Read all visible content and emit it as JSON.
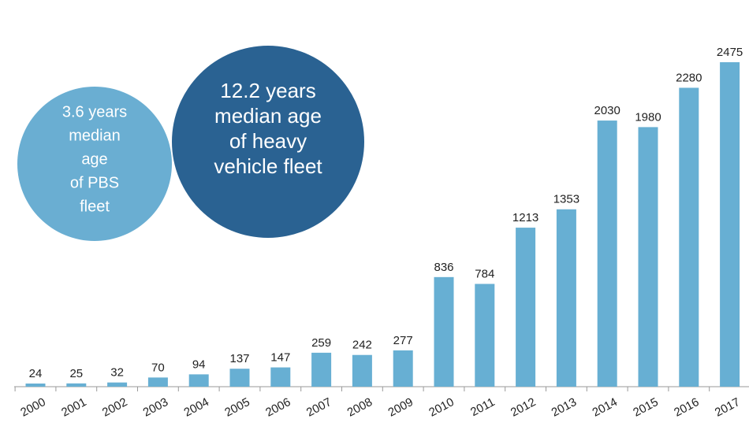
{
  "chart_data": {
    "type": "bar",
    "categories": [
      "2000",
      "2001",
      "2002",
      "2003",
      "2004",
      "2005",
      "2006",
      "2007",
      "2008",
      "2009",
      "2010",
      "2011",
      "2012",
      "2013",
      "2014",
      "2015",
      "2016",
      "2017"
    ],
    "values": [
      24,
      25,
      32,
      70,
      94,
      137,
      147,
      259,
      242,
      277,
      836,
      784,
      1213,
      1353,
      2030,
      1980,
      2280,
      2475
    ],
    "color": "#67afd3",
    "annotations": [
      {
        "lines": [
          "3.6 years",
          "median",
          "age",
          "of PBS",
          "fleet"
        ],
        "color": "#6aaed2"
      },
      {
        "lines": [
          "12.2 years",
          "median age",
          "of heavy",
          "vehicle fleet"
        ],
        "color": "#2a6292"
      }
    ]
  }
}
